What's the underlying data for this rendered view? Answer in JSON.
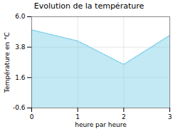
{
  "chart_data": {
    "type": "area",
    "title": "Evolution de la température",
    "x_label": "heure par heure",
    "y_label": "Température en °C",
    "x": [
      0,
      1,
      2,
      3
    ],
    "values": [
      5.05,
      4.25,
      2.55,
      4.65
    ],
    "color": "#7acfe8",
    "line_style": "dotted",
    "xlim": [
      0,
      3
    ],
    "ylim": [
      -0.6,
      6.0
    ],
    "xticks": [
      0,
      1,
      2,
      3
    ],
    "yticks": [
      -0.6,
      1.6,
      3.8,
      {
        "value": 6.0,
        "label": "6.0"
      }
    ],
    "grid": true
  }
}
